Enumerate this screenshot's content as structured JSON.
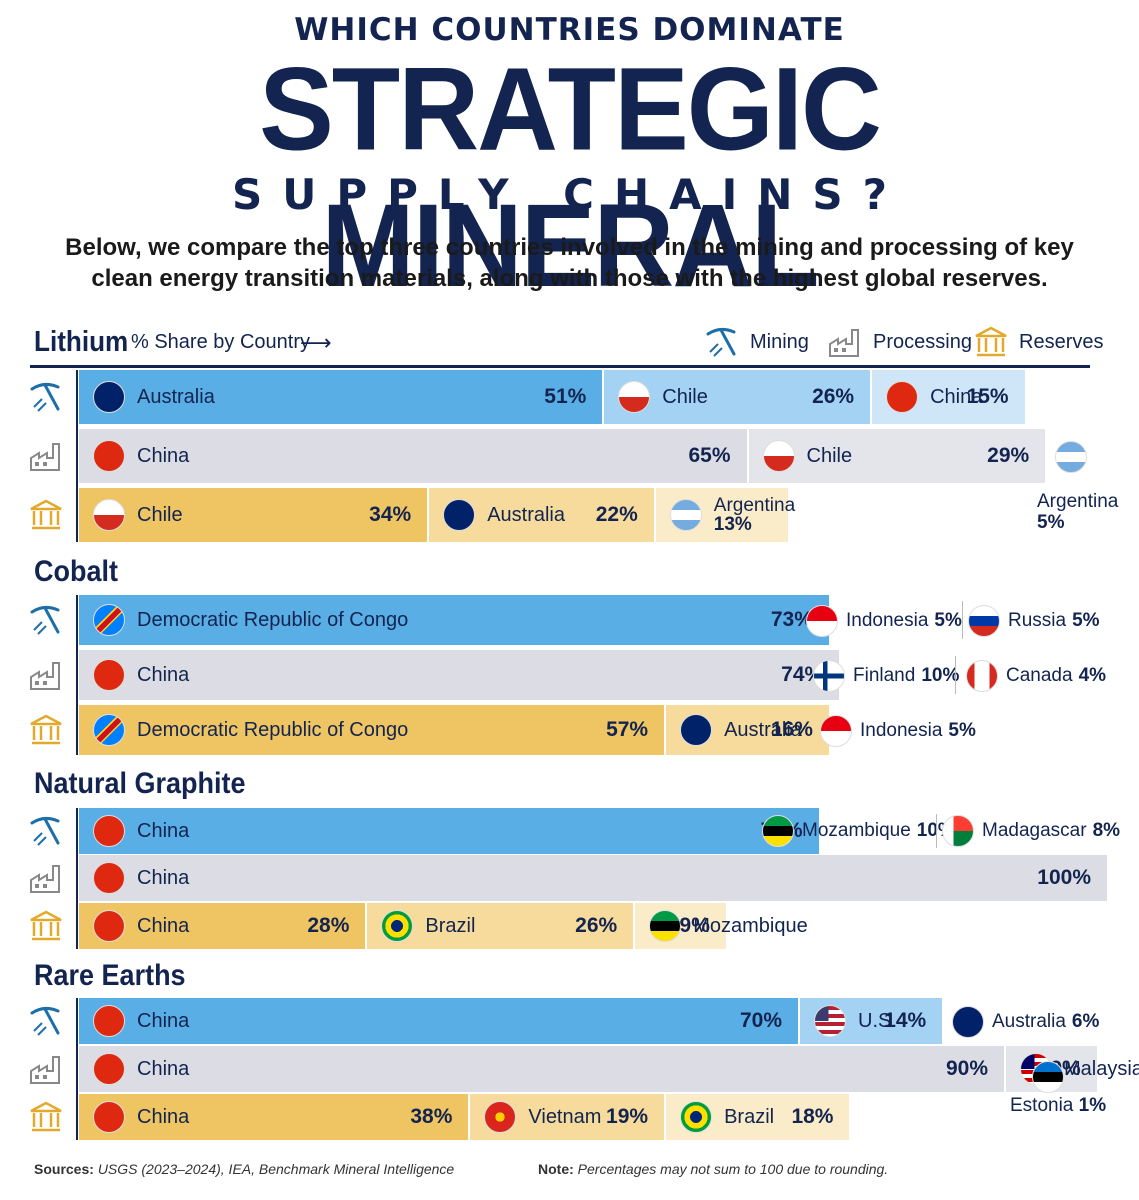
{
  "title": {
    "line1": "WHICH COUNTRIES DOMINATE",
    "line2": "STRATEGIC MINERAL",
    "line3": "SUPPLY CHAINS?"
  },
  "subtitle": "Below, we compare the top three countries involved in the mining and processing of key clean energy transition materials, along with those with the highest global reserves.",
  "header": {
    "share_label": "% Share by Country",
    "arrow": "⟶"
  },
  "legend": {
    "mining": "Mining",
    "processing": "Processing",
    "reserves": "Reserves"
  },
  "colors": {
    "mining": [
      "#5aaee6",
      "#a3d2f2",
      "#cfe6f8"
    ],
    "processing": [
      "#dcdde4",
      "#e4e5ea",
      "#eeeef2"
    ],
    "reserves": [
      "#efc564",
      "#f6db9c",
      "#fbecc9"
    ],
    "navy": "#12244f"
  },
  "chart_data": {
    "type": "bar",
    "unit": "% share by country",
    "minerals": [
      {
        "name": "Lithium",
        "rows": [
          {
            "stage": "Mining",
            "shares": [
              {
                "country": "Australia",
                "value": 51
              },
              {
                "country": "Chile",
                "value": 26
              },
              {
                "country": "China",
                "value": 15
              }
            ]
          },
          {
            "stage": "Processing",
            "shares": [
              {
                "country": "China",
                "value": 65
              },
              {
                "country": "Chile",
                "value": 29
              },
              {
                "country": "Argentina",
                "value": 5
              }
            ]
          },
          {
            "stage": "Reserves",
            "shares": [
              {
                "country": "Chile",
                "value": 34
              },
              {
                "country": "Australia",
                "value": 22
              },
              {
                "country": "Argentina",
                "value": 13
              }
            ]
          }
        ]
      },
      {
        "name": "Cobalt",
        "rows": [
          {
            "stage": "Mining",
            "shares": [
              {
                "country": "Democratic Republic of Congo",
                "value": 73
              },
              {
                "country": "Indonesia",
                "value": 5
              },
              {
                "country": "Russia",
                "value": 5
              }
            ]
          },
          {
            "stage": "Processing",
            "shares": [
              {
                "country": "China",
                "value": 74
              },
              {
                "country": "Finland",
                "value": 10
              },
              {
                "country": "Canada",
                "value": 4
              }
            ]
          },
          {
            "stage": "Reserves",
            "shares": [
              {
                "country": "Democratic Republic of Congo",
                "value": 57
              },
              {
                "country": "Australia",
                "value": 16
              },
              {
                "country": "Indonesia",
                "value": 5
              }
            ]
          }
        ]
      },
      {
        "name": "Natural Graphite",
        "rows": [
          {
            "stage": "Mining",
            "shares": [
              {
                "country": "China",
                "value": 72
              },
              {
                "country": "Mozambique",
                "value": 10
              },
              {
                "country": "Madagascar",
                "value": 8
              }
            ]
          },
          {
            "stage": "Processing",
            "shares": [
              {
                "country": "China",
                "value": 100
              }
            ]
          },
          {
            "stage": "Reserves",
            "shares": [
              {
                "country": "China",
                "value": 28
              },
              {
                "country": "Brazil",
                "value": 26
              },
              {
                "country": "Mozambique",
                "value": 9
              }
            ]
          }
        ]
      },
      {
        "name": "Rare Earths",
        "rows": [
          {
            "stage": "Mining",
            "shares": [
              {
                "country": "China",
                "value": 70
              },
              {
                "country": "U.S.",
                "value": 14
              },
              {
                "country": "Australia",
                "value": 6
              }
            ]
          },
          {
            "stage": "Processing",
            "shares": [
              {
                "country": "China",
                "value": 90
              },
              {
                "country": "Malaysia",
                "value": 9
              },
              {
                "country": "Estonia",
                "value": 1
              }
            ]
          },
          {
            "stage": "Reserves",
            "shares": [
              {
                "country": "China",
                "value": 38
              },
              {
                "country": "Vietnam",
                "value": 19
              },
              {
                "country": "Brazil",
                "value": 18
              }
            ]
          }
        ]
      }
    ]
  },
  "footer": {
    "sources_label": "Sources:",
    "sources": "USGS (2023–2024), IEA, Benchmark Mineral Intelligence",
    "note_label": "Note:",
    "note": "Percentages may not sum to 100 due to rounding."
  }
}
